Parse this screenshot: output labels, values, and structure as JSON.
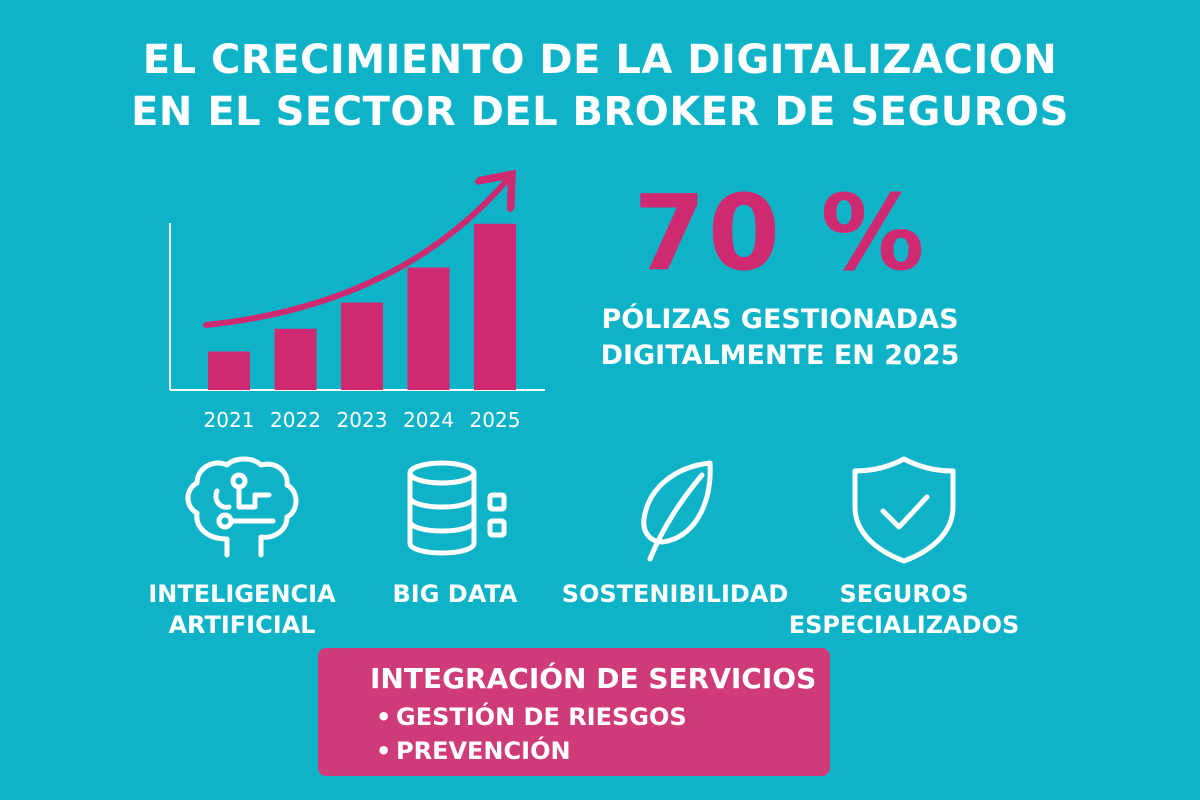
{
  "header": {
    "title_line1": "EL CRECIMIENTO DE LA DIGITALIZACION",
    "title_line2": "EN EL SECTOR DEL BROKER DE SEGUROS"
  },
  "chart_data": {
    "type": "bar",
    "categories": [
      "2021",
      "2022",
      "2023",
      "2024",
      "2025"
    ],
    "values": [
      22,
      35,
      50,
      70,
      95
    ],
    "ylim": [
      0,
      100
    ],
    "trend_arrow": true,
    "grid": false,
    "bar_color": "#cf2a71"
  },
  "stat": {
    "value": "70 %",
    "caption_line1": "PÓLIZAS GESTIONADAS",
    "caption_line2": "DIGITALMENTE EN 2025"
  },
  "features": [
    {
      "icon": "brain-circuit-icon",
      "label_line1": "INTELIGENCIA",
      "label_line2": "ARTIFICIAL"
    },
    {
      "icon": "database-icon",
      "label_line1": "BIG DATA",
      "label_line2": ""
    },
    {
      "icon": "leaf-icon",
      "label_line1": "SOSTENIBILIDAD",
      "label_line2": ""
    },
    {
      "icon": "shield-check-icon",
      "label_line1": "SEGUROS",
      "label_line2": "ESPECIALIZADOS"
    }
  ],
  "services": {
    "title": "INTEGRACIÓN DE SERVICIOS",
    "items": [
      "GESTIÓN DE RIESGOS",
      "PREVENCIÓN"
    ]
  },
  "colors": {
    "background": "#0fb3c8",
    "accent": "#cf2a71",
    "box": "#cf3b78",
    "text": "#ffffff"
  }
}
